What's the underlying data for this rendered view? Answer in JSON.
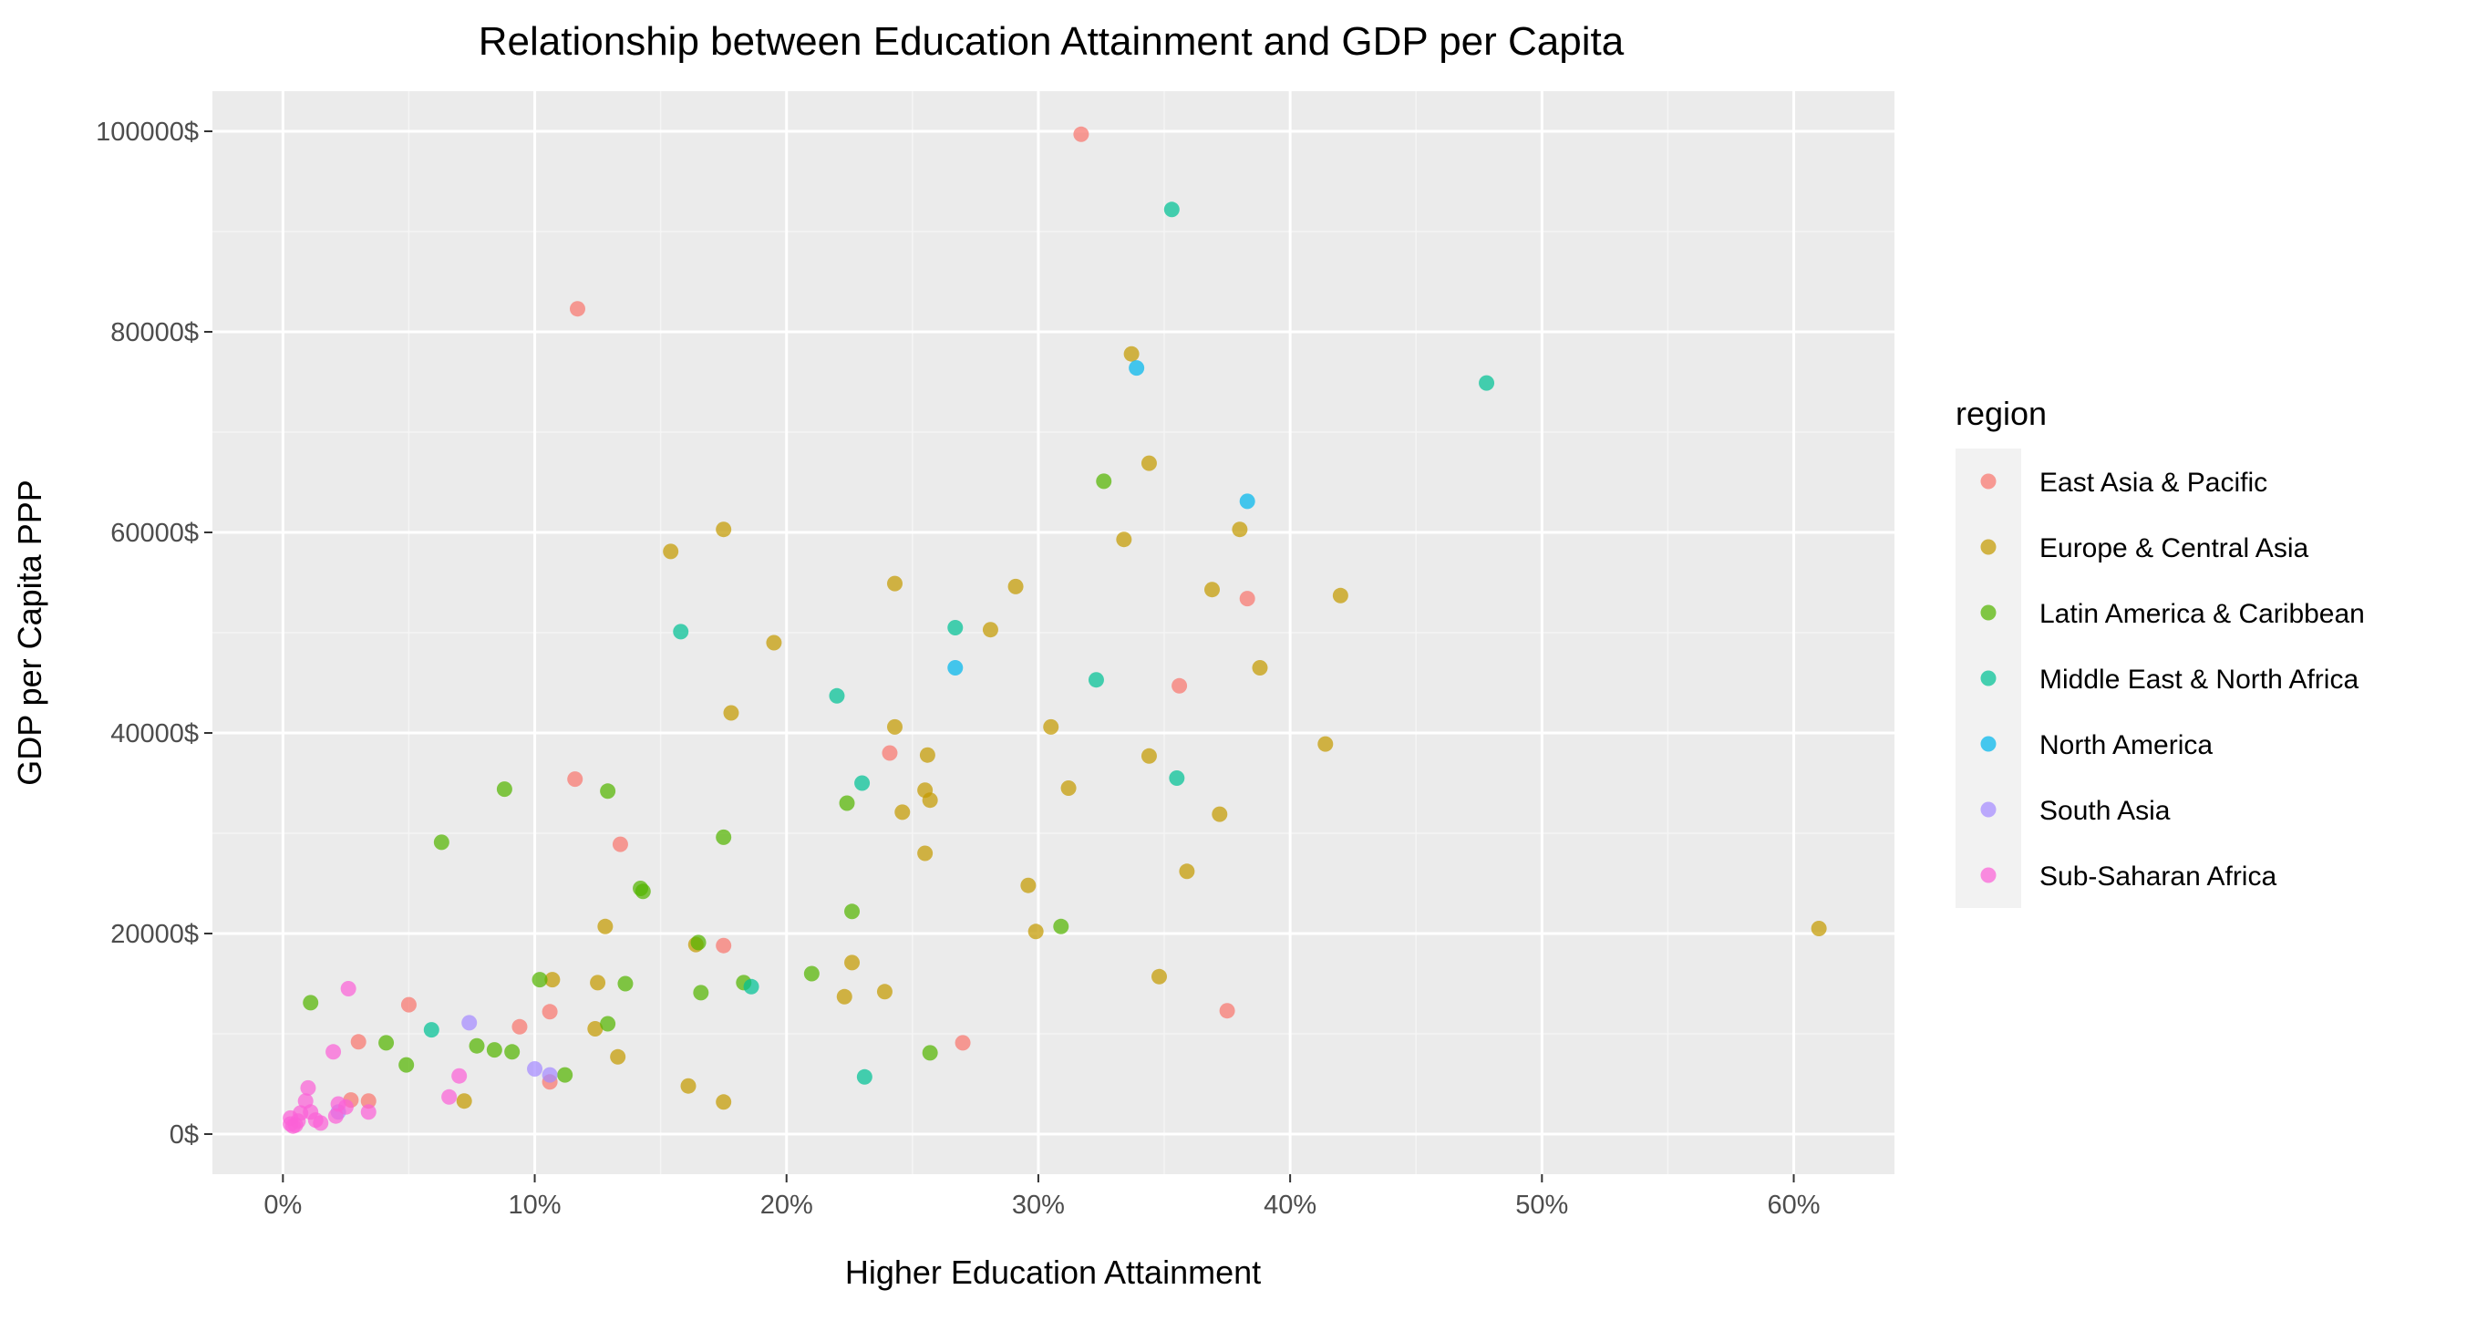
{
  "chart_data": {
    "type": "scatter",
    "title": "Relationship between Education Attainment and GDP per Capita",
    "xlabel": "Higher Education Attainment",
    "ylabel": "GDP per Capita PPP",
    "x_unit": "percent",
    "xlim": [
      -0.028,
      0.64
    ],
    "ylim": [
      -4000,
      104000
    ],
    "x_ticks": [
      0,
      0.1,
      0.2,
      0.3,
      0.4,
      0.5,
      0.6
    ],
    "x_tick_labels": [
      "0%",
      "10%",
      "20%",
      "30%",
      "40%",
      "50%",
      "60%"
    ],
    "y_ticks": [
      0,
      20000,
      40000,
      60000,
      80000,
      100000
    ],
    "y_tick_labels": [
      "0$",
      "20000$",
      "40000$",
      "60000$",
      "80000$",
      "100000$"
    ],
    "grid": true,
    "legend_title": "region",
    "legend_position": "right",
    "series": [
      {
        "name": "East Asia & Pacific",
        "color": "#F8766D",
        "points": [
          [
            0.317,
            99700
          ],
          [
            0.117,
            82300
          ],
          [
            0.383,
            53400
          ],
          [
            0.356,
            44700
          ],
          [
            0.241,
            38000
          ],
          [
            0.116,
            35400
          ],
          [
            0.134,
            28900
          ],
          [
            0.175,
            18800
          ],
          [
            0.05,
            12900
          ],
          [
            0.106,
            12200
          ],
          [
            0.375,
            12300
          ],
          [
            0.094,
            10700
          ],
          [
            0.03,
            9200
          ],
          [
            0.27,
            9100
          ],
          [
            0.106,
            5200
          ],
          [
            0.034,
            3300
          ],
          [
            0.027,
            3400
          ]
        ]
      },
      {
        "name": "Europe & Central Asia",
        "color": "#C49A00",
        "points": [
          [
            0.61,
            20500
          ],
          [
            0.337,
            77800
          ],
          [
            0.344,
            66900
          ],
          [
            0.175,
            60300
          ],
          [
            0.38,
            60300
          ],
          [
            0.154,
            58100
          ],
          [
            0.334,
            59300
          ],
          [
            0.243,
            54900
          ],
          [
            0.291,
            54600
          ],
          [
            0.42,
            53700
          ],
          [
            0.369,
            54300
          ],
          [
            0.195,
            49000
          ],
          [
            0.281,
            50300
          ],
          [
            0.388,
            46500
          ],
          [
            0.178,
            42000
          ],
          [
            0.243,
            40600
          ],
          [
            0.305,
            40600
          ],
          [
            0.414,
            38900
          ],
          [
            0.256,
            37800
          ],
          [
            0.344,
            37700
          ],
          [
            0.312,
            34500
          ],
          [
            0.255,
            34300
          ],
          [
            0.257,
            33300
          ],
          [
            0.246,
            32100
          ],
          [
            0.372,
            31900
          ],
          [
            0.255,
            28000
          ],
          [
            0.359,
            26200
          ],
          [
            0.296,
            24800
          ],
          [
            0.128,
            20700
          ],
          [
            0.299,
            20200
          ],
          [
            0.164,
            18900
          ],
          [
            0.226,
            17100
          ],
          [
            0.348,
            15700
          ],
          [
            0.107,
            15400
          ],
          [
            0.125,
            15100
          ],
          [
            0.239,
            14200
          ],
          [
            0.223,
            13700
          ],
          [
            0.124,
            10500
          ],
          [
            0.133,
            7700
          ],
          [
            0.072,
            3300
          ],
          [
            0.161,
            4800
          ],
          [
            0.175,
            3200
          ]
        ]
      },
      {
        "name": "Latin America & Caribbean",
        "color": "#53B400",
        "points": [
          [
            0.326,
            65100
          ],
          [
            0.088,
            34400
          ],
          [
            0.129,
            34200
          ],
          [
            0.224,
            33000
          ],
          [
            0.175,
            29600
          ],
          [
            0.063,
            29100
          ],
          [
            0.142,
            24500
          ],
          [
            0.143,
            24200
          ],
          [
            0.226,
            22200
          ],
          [
            0.309,
            20700
          ],
          [
            0.165,
            19100
          ],
          [
            0.102,
            15400
          ],
          [
            0.21,
            16000
          ],
          [
            0.183,
            15100
          ],
          [
            0.136,
            15000
          ],
          [
            0.166,
            14100
          ],
          [
            0.011,
            13100
          ],
          [
            0.129,
            11000
          ],
          [
            0.041,
            9100
          ],
          [
            0.077,
            8800
          ],
          [
            0.084,
            8400
          ],
          [
            0.091,
            8200
          ],
          [
            0.257,
            8100
          ],
          [
            0.049,
            6900
          ],
          [
            0.112,
            5900
          ]
        ]
      },
      {
        "name": "Middle East & North Africa",
        "color": "#00C094",
        "points": [
          [
            0.353,
            92200
          ],
          [
            0.478,
            74900
          ],
          [
            0.158,
            50100
          ],
          [
            0.267,
            50500
          ],
          [
            0.22,
            43700
          ],
          [
            0.323,
            45300
          ],
          [
            0.23,
            35000
          ],
          [
            0.355,
            35500
          ],
          [
            0.186,
            14700
          ],
          [
            0.059,
            10400
          ],
          [
            0.231,
            5700
          ]
        ]
      },
      {
        "name": "North America",
        "color": "#00B6EB",
        "points": [
          [
            0.339,
            76400
          ],
          [
            0.383,
            63100
          ],
          [
            0.267,
            46500
          ]
        ]
      },
      {
        "name": "South Asia",
        "color": "#A58AFF",
        "points": [
          [
            0.074,
            11100
          ],
          [
            0.1,
            6500
          ],
          [
            0.106,
            5900
          ],
          [
            0.022,
            2200
          ]
        ]
      },
      {
        "name": "Sub-Saharan Africa",
        "color": "#FB61D7",
        "points": [
          [
            0.026,
            14500
          ],
          [
            0.02,
            8200
          ],
          [
            0.07,
            5800
          ],
          [
            0.066,
            3700
          ],
          [
            0.01,
            4600
          ],
          [
            0.009,
            3300
          ],
          [
            0.025,
            2700
          ],
          [
            0.022,
            3000
          ],
          [
            0.034,
            2200
          ],
          [
            0.021,
            1800
          ],
          [
            0.007,
            2100
          ],
          [
            0.011,
            2200
          ],
          [
            0.013,
            1400
          ],
          [
            0.015,
            1100
          ],
          [
            0.003,
            1600
          ],
          [
            0.006,
            1300
          ],
          [
            0.004,
            800
          ],
          [
            0.005,
            900
          ],
          [
            0.003,
            1000
          ]
        ]
      }
    ]
  }
}
